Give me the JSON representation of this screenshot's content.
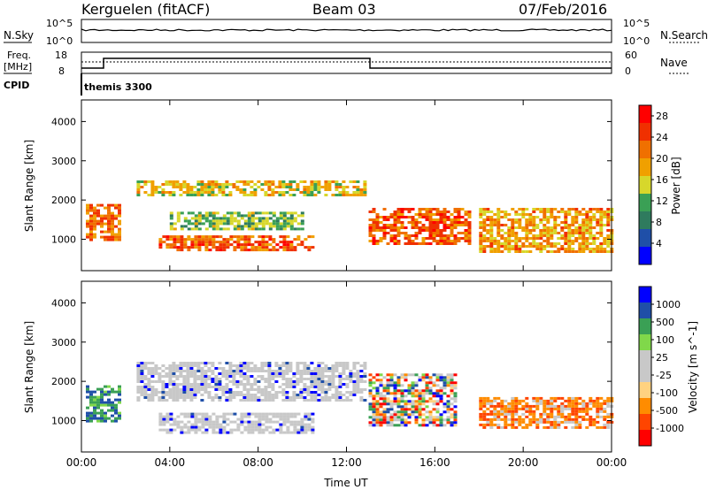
{
  "header": {
    "station": "Kerguelen (fitACF)",
    "beam": "Beam 03",
    "date": "07/Feb/2016"
  },
  "noise_panel": {
    "left_label": "N.Sky",
    "right_label": "N.Search",
    "left_ticks": [
      "10^5",
      "10^0"
    ],
    "right_ticks": [
      "10^5",
      "10^0"
    ]
  },
  "freq_panel": {
    "left_label_top": "Freq.",
    "left_label_unit": "[MHz]",
    "right_label": "Nave",
    "left_ticks": [
      "18",
      "8"
    ],
    "right_ticks": [
      "60",
      "0"
    ],
    "cpid_label": "CPID",
    "cpid_value": "themis 3300"
  },
  "colors": {
    "power": [
      "#0000ff",
      "#1f4fa8",
      "#2f7b5e",
      "#3aa055",
      "#d7d72b",
      "#f0a000",
      "#f07000",
      "#f03000",
      "#ff0000"
    ],
    "velocity": [
      "#ff0000",
      "#ff4500",
      "#ff8c00",
      "#ffd280",
      "#c8c8c8",
      "#c8c8c8",
      "#80d84a",
      "#3aa055",
      "#1f4fa8",
      "#0000ff"
    ]
  },
  "chart_data": [
    {
      "type": "heatmap",
      "title": "Power",
      "xlabel": "Time UT",
      "ylabel": "Slant Range [km]",
      "x_ticks": [
        "00:00",
        "04:00",
        "08:00",
        "12:00",
        "16:00",
        "20:00",
        "00:00"
      ],
      "y_ticks": [
        1000,
        2000,
        3000,
        4000
      ],
      "ylim": [
        200,
        4550
      ],
      "xlim_hours": [
        0,
        24
      ],
      "colorbar": {
        "label": "Power [dB]",
        "ticks": [
          4,
          8,
          12,
          16,
          20,
          24,
          28
        ],
        "range": [
          0,
          30
        ]
      },
      "bands": [
        {
          "t": [
            0.2,
            1.8
          ],
          "r": [
            1000,
            1900
          ],
          "level": 0.75
        },
        {
          "t": [
            2.5,
            12.8
          ],
          "r": [
            2100,
            2500
          ],
          "level": 0.55
        },
        {
          "t": [
            3.5,
            10.5
          ],
          "r": [
            700,
            1100
          ],
          "level": 0.8
        },
        {
          "t": [
            4.0,
            10.0
          ],
          "r": [
            1250,
            1700
          ],
          "level": 0.4
        },
        {
          "t": [
            13.0,
            17.5
          ],
          "r": [
            900,
            1800
          ],
          "level": 0.8
        },
        {
          "t": [
            18.0,
            24.0
          ],
          "r": [
            700,
            1800
          ],
          "level": 0.65
        }
      ]
    },
    {
      "type": "heatmap",
      "title": "Velocity",
      "xlabel": "Time UT",
      "ylabel": "Slant Range [km]",
      "x_ticks": [
        "00:00",
        "04:00",
        "08:00",
        "12:00",
        "16:00",
        "20:00",
        "00:00"
      ],
      "y_ticks": [
        1000,
        2000,
        3000,
        4000
      ],
      "ylim": [
        200,
        4550
      ],
      "colorbar": {
        "label": "Velocity [m s^-1]",
        "ticks": [
          "1000",
          "500",
          "100",
          "25",
          "-25",
          "-100",
          "-500",
          "-1000"
        ]
      },
      "bands": [
        {
          "t": [
            0.2,
            1.8
          ],
          "r": [
            1000,
            1900
          ],
          "value": "positive"
        },
        {
          "t": [
            2.5,
            12.8
          ],
          "r": [
            1500,
            2500
          ],
          "value": "near zero"
        },
        {
          "t": [
            3.5,
            10.5
          ],
          "r": [
            700,
            1200
          ],
          "value": "near zero"
        },
        {
          "t": [
            13.0,
            17.0
          ],
          "r": [
            900,
            2200
          ],
          "value": "mixed"
        },
        {
          "t": [
            18.0,
            24.0
          ],
          "r": [
            800,
            1600
          ],
          "value": "negative"
        }
      ]
    }
  ]
}
